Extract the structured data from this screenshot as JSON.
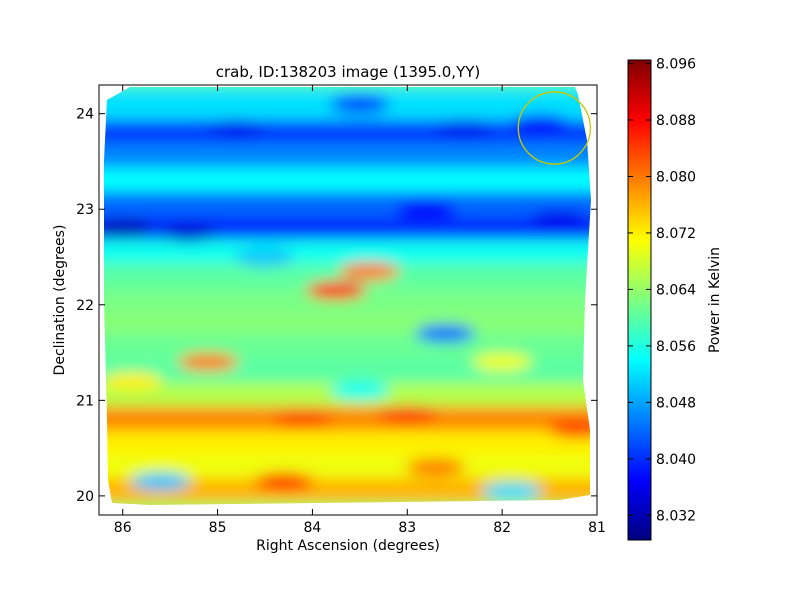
{
  "chart_data": {
    "type": "heatmap",
    "title": "crab, ID:138203 image (1395.0,YY)",
    "xlabel": "Right Ascension (degrees)",
    "ylabel": "Declination (degrees)",
    "xlim": [
      86.25,
      81.0
    ],
    "ylim": [
      19.8,
      24.3
    ],
    "x_ticks": [
      86,
      85,
      84,
      83,
      82,
      81
    ],
    "y_ticks": [
      20,
      21,
      22,
      23,
      24
    ],
    "colorbar": {
      "label": "Power in Kelvin",
      "range": [
        8.0285,
        8.0965
      ],
      "ticks": [
        "8.032",
        "8.040",
        "8.048",
        "8.056",
        "8.064",
        "8.072",
        "8.080",
        "8.088",
        "8.096"
      ],
      "colormap": "jet"
    },
    "marker_circle": {
      "ra": 81.45,
      "dec": 23.85,
      "radius_deg": 0.38,
      "color": "#c9c800"
    },
    "grid": false,
    "band_profile": {
      "dec": [
        19.85,
        20.1,
        20.35,
        20.6,
        20.85,
        21.1,
        21.35,
        21.6,
        21.85,
        22.1,
        22.35,
        22.6,
        22.85,
        23.1,
        23.35,
        23.6,
        23.85,
        24.1
      ],
      "power": [
        8.064,
        8.076,
        8.07,
        8.072,
        8.079,
        8.066,
        8.06,
        8.061,
        8.063,
        8.062,
        8.06,
        8.055,
        8.04,
        8.044,
        8.054,
        8.046,
        8.041,
        8.052
      ]
    },
    "features": [
      {
        "ra": 83.75,
        "dec": 22.15,
        "power": 8.088
      },
      {
        "ra": 83.4,
        "dec": 22.35,
        "power": 8.08
      },
      {
        "ra": 84.3,
        "dec": 20.15,
        "power": 8.085
      },
      {
        "ra": 83.0,
        "dec": 20.85,
        "power": 8.084
      },
      {
        "ra": 84.1,
        "dec": 20.8,
        "power": 8.083
      },
      {
        "ra": 81.2,
        "dec": 20.7,
        "power": 8.084
      },
      {
        "ra": 82.7,
        "dec": 20.3,
        "power": 8.08
      },
      {
        "ra": 86.0,
        "dec": 22.8,
        "power": 8.032
      },
      {
        "ra": 85.3,
        "dec": 22.75,
        "power": 8.034
      },
      {
        "ra": 82.8,
        "dec": 23.0,
        "power": 8.037
      },
      {
        "ra": 81.4,
        "dec": 22.9,
        "power": 8.036
      },
      {
        "ra": 84.8,
        "dec": 23.85,
        "power": 8.036
      },
      {
        "ra": 83.5,
        "dec": 24.1,
        "power": 8.04
      },
      {
        "ra": 82.4,
        "dec": 23.85,
        "power": 8.036
      },
      {
        "ra": 81.6,
        "dec": 23.9,
        "power": 8.037
      },
      {
        "ra": 82.6,
        "dec": 21.7,
        "power": 8.044
      },
      {
        "ra": 84.5,
        "dec": 22.5,
        "power": 8.05
      },
      {
        "ra": 85.6,
        "dec": 20.15,
        "power": 8.05
      },
      {
        "ra": 83.5,
        "dec": 21.1,
        "power": 8.055
      },
      {
        "ra": 85.1,
        "dec": 21.4,
        "power": 8.08
      },
      {
        "ra": 85.9,
        "dec": 21.2,
        "power": 8.072
      },
      {
        "ra": 82.0,
        "dec": 21.4,
        "power": 8.07
      },
      {
        "ra": 81.9,
        "dec": 20.05,
        "power": 8.052
      }
    ]
  }
}
